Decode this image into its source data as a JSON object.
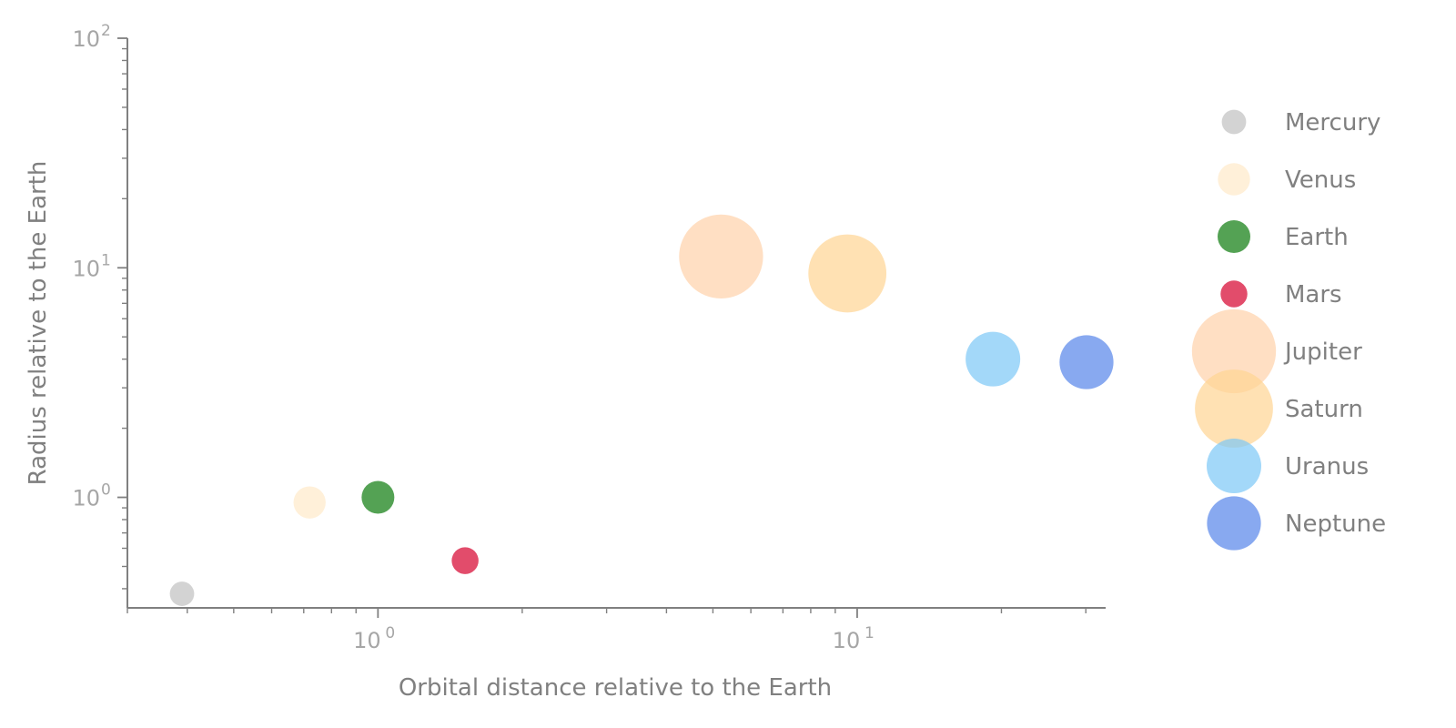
{
  "chart_data": {
    "type": "scatter",
    "title": "",
    "xlabel": "Orbital distance relative to the Earth",
    "ylabel": "Radius relative to the Earth",
    "xscale": "log",
    "yscale": "log",
    "xlim": [
      0.3,
      33
    ],
    "ylim": [
      0.33,
      100
    ],
    "x_ticks": [
      {
        "base": "10",
        "exp": "0",
        "value": 1
      },
      {
        "base": "10",
        "exp": "1",
        "value": 10
      }
    ],
    "y_ticks": [
      {
        "base": "10",
        "exp": "0",
        "value": 1
      },
      {
        "base": "10",
        "exp": "1",
        "value": 10
      },
      {
        "base": "10",
        "exp": "2",
        "value": 100
      }
    ],
    "grid": false,
    "legend_position": "right",
    "marker_alpha": 0.7,
    "series": [
      {
        "name": "Mercury",
        "x": 0.39,
        "y": 0.38,
        "color": "#c0c0c0"
      },
      {
        "name": "Venus",
        "x": 0.72,
        "y": 0.95,
        "color": "#ffe9c9"
      },
      {
        "name": "Earth",
        "x": 1.0,
        "y": 1.0,
        "color": "#0b7a0b"
      },
      {
        "name": "Mars",
        "x": 1.52,
        "y": 0.53,
        "color": "#d6002c"
      },
      {
        "name": "Jupiter",
        "x": 5.2,
        "y": 11.2,
        "color": "#ffd1aa"
      },
      {
        "name": "Saturn",
        "x": 9.54,
        "y": 9.45,
        "color": "#ffd493"
      },
      {
        "name": "Uranus",
        "x": 19.2,
        "y": 4.0,
        "color": "#7cc8f7"
      },
      {
        "name": "Neptune",
        "x": 30.1,
        "y": 3.88,
        "color": "#5585ea"
      }
    ]
  }
}
